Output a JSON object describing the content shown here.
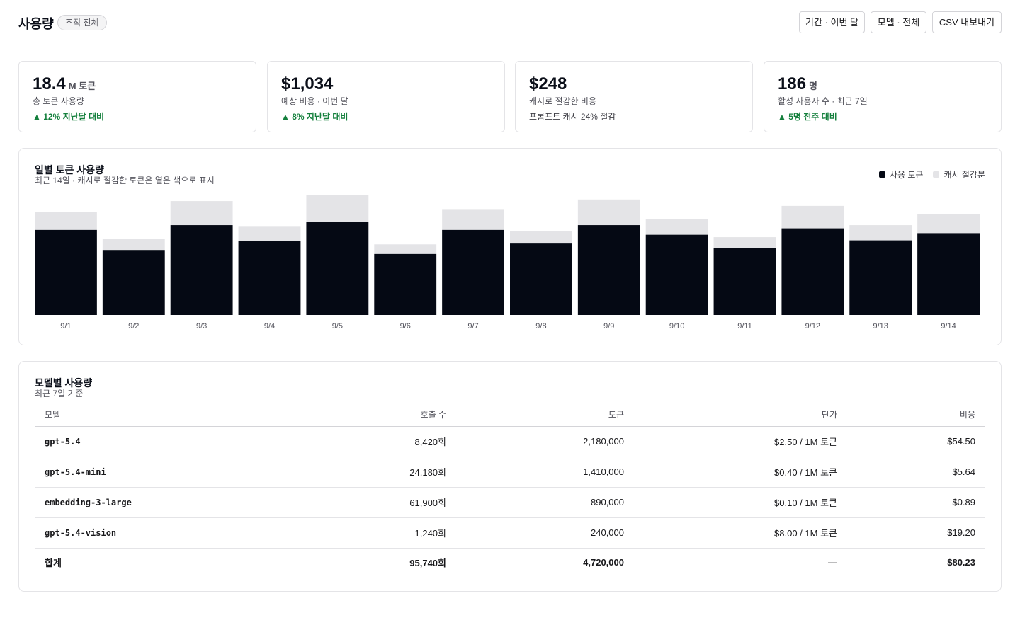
{
  "header": {
    "title": "사용량",
    "scope_badge": "조직 전체",
    "period_button": "기간 · 이번 달",
    "model_button": "모델 · 전체",
    "export_button": "CSV 내보내기"
  },
  "stats": [
    {
      "value": "18.4",
      "unit": "M 토큰",
      "label": "총 토큰 사용량",
      "delta": "▲ 12% 지난달 대비"
    },
    {
      "value": "$1,034",
      "unit": "",
      "label": "예상 비용 · 이번 달",
      "delta": "▲ 8% 지난달 대비"
    },
    {
      "value": "$248",
      "unit": "",
      "label": "캐시로 절감한 비용",
      "note": "프롬프트 캐시 24% 절감"
    },
    {
      "value": "186",
      "unit": "명",
      "label": "활성 사용자 수 · 최근 7일",
      "delta": "▲ 5명 전주 대비"
    }
  ],
  "colors": {
    "used": "#050914",
    "cached": "#e4e4e7",
    "positive": "#15803d"
  },
  "daily_chart": {
    "title": "일별 토큰 사용량",
    "subtitle": "최근 14일 · 캐시로 절감한 토큰은 옅은 색으로 표시",
    "legend_used": "사용 토큰",
    "legend_cached": "캐시 절감분"
  },
  "chart_data": {
    "type": "bar",
    "stacked": true,
    "categories": [
      "9/1",
      "9/2",
      "9/3",
      "9/4",
      "9/5",
      "9/6",
      "9/7",
      "9/8",
      "9/9",
      "9/10",
      "9/11",
      "9/12",
      "9/13",
      "9/14"
    ],
    "series": [
      {
        "name": "사용 토큰",
        "values": [
          106,
          81,
          112,
          92,
          116,
          76,
          106,
          89,
          112,
          100,
          83,
          108,
          93,
          102
        ]
      },
      {
        "name": "캐시 절감분",
        "values": [
          22,
          14,
          30,
          18,
          34,
          12,
          26,
          16,
          32,
          20,
          14,
          28,
          19,
          24
        ]
      }
    ],
    "ylim": [
      0,
      150
    ],
    "grid": false,
    "legend": "top-right"
  },
  "model_table": {
    "title": "모델별 사용량",
    "subtitle": "최근 7일 기준",
    "headers": [
      "모델",
      "호출 수",
      "토큰",
      "단가",
      "비용"
    ],
    "rows": [
      [
        "gpt-5.4",
        "8,420회",
        "2,180,000",
        "$2.50 / 1M 토큰",
        "$54.50"
      ],
      [
        "gpt-5.4-mini",
        "24,180회",
        "1,410,000",
        "$0.40 / 1M 토큰",
        "$5.64"
      ],
      [
        "embedding-3-large",
        "61,900회",
        "890,000",
        "$0.10 / 1M 토큰",
        "$0.89"
      ],
      [
        "gpt-5.4-vision",
        "1,240회",
        "240,000",
        "$8.00 / 1M 토큰",
        "$19.20"
      ]
    ],
    "total": [
      "합계",
      "95,740회",
      "4,720,000",
      "—",
      "$80.23"
    ]
  }
}
